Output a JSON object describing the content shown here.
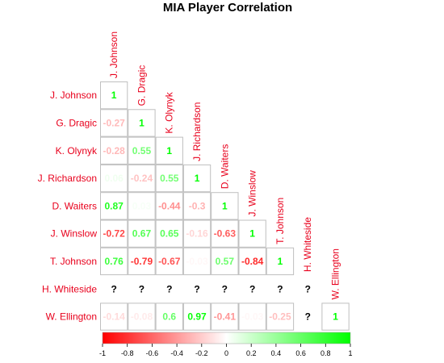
{
  "chart_data": {
    "type": "heatmap",
    "title": "MIA Player Correlation",
    "players": [
      "J. Johnson",
      "G. Dragic",
      "K. Olynyk",
      "J. Richardson",
      "D. Waiters",
      "J. Winslow",
      "T. Johnson",
      "H. Whiteside",
      "W. Ellington"
    ],
    "missing_label": "?",
    "matrix": [
      [
        1
      ],
      [
        -0.27,
        1
      ],
      [
        -0.28,
        0.55,
        1
      ],
      [
        0.06,
        -0.24,
        0.55,
        1
      ],
      [
        0.87,
        0.03,
        -0.44,
        -0.3,
        1
      ],
      [
        -0.72,
        0.67,
        0.65,
        -0.16,
        -0.63,
        1
      ],
      [
        0.76,
        -0.79,
        -0.67,
        -0.03,
        0.57,
        -0.84,
        1
      ],
      [
        null,
        null,
        null,
        null,
        null,
        null,
        null,
        null
      ],
      [
        -0.14,
        -0.08,
        0.6,
        0.97,
        -0.41,
        -0.03,
        -0.25,
        null,
        1
      ]
    ],
    "colorbar": {
      "range": [
        -1,
        1
      ],
      "ticks": [
        "-1",
        "-0.8",
        "-0.6",
        "-0.4",
        "-0.2",
        "0",
        "0.2",
        "0.4",
        "0.6",
        "0.8",
        "1"
      ],
      "low_color": "#ff0000",
      "mid_color": "#ffffff",
      "high_color": "#00ff00"
    },
    "label_color": "#e8001c",
    "layout": "lower-triangle"
  }
}
